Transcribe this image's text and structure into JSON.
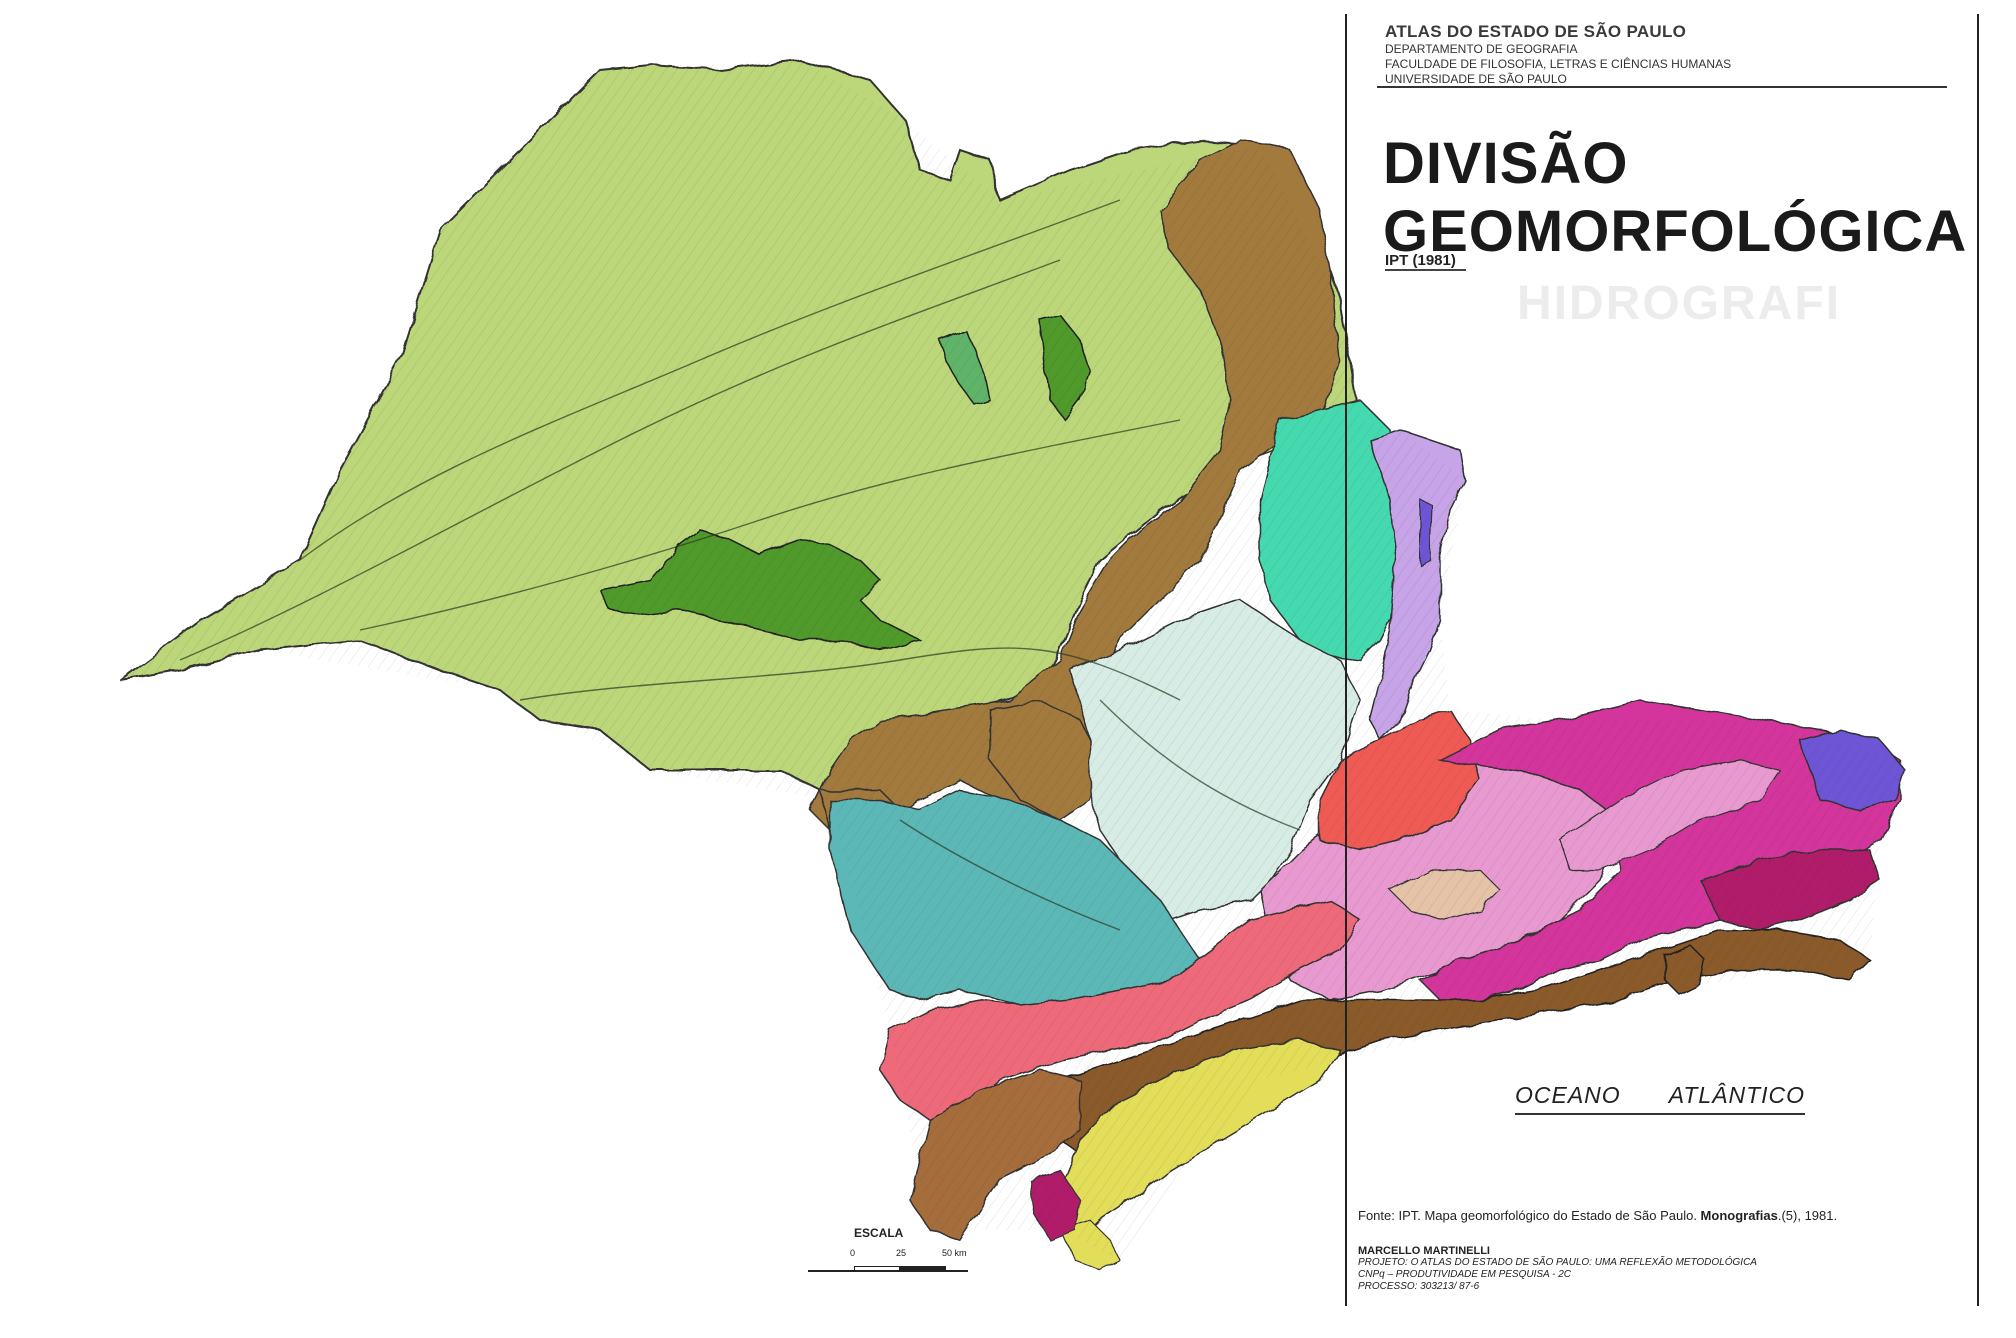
{
  "header": {
    "atlas_title": "ATLAS DO ESTADO DE SÃO PAULO",
    "department": "DEPARTAMENTO DE GEOGRAFIA",
    "faculty": "FACULDADE DE FILOSOFIA, LETRAS E CIÊNCIAS HUMANAS",
    "university": "UNIVERSIDADE DE SÃO PAULO"
  },
  "title": {
    "line1": "DIVISÃO",
    "line2": "GEOMORFOLÓGICA",
    "reference": "IPT (1981)",
    "ghost_text": "HIDROGRAFI"
  },
  "map": {
    "ocean_word1": "OCEANO",
    "ocean_word2": "ATLÂNTICO",
    "colors": {
      "planalto_ocidental": "#bcd67a",
      "cuestas_basalticas": "#a27a3c",
      "mesetas_basalticas": "#4f9a2a",
      "mesetas_light": "#5fb46a",
      "depressao_mogi_guacu": "#44d9b0",
      "depressao_medio_tiete": "#d8ece6",
      "depressao_paranapanema": "#5bb8b6",
      "planalto_atlantico_oeste": "#ee6a7a",
      "planalto_paulistano": "#f05a55",
      "planalto_mantiqueira": "#c7a3e8",
      "serra_mantiqueira": "#6e55d6",
      "planalto_paraitinga": "#d3349c",
      "vale_paraiba": "#e89ad0",
      "bocaina": "#b01f6a",
      "serra_do_mar": "#8b5a2b",
      "planicie_costeira": "#e3de5a",
      "litoral_sul": "#a56d3a",
      "morros_isolados": "#e5c3a8"
    }
  },
  "scale": {
    "label": "ESCALA",
    "t0": "0",
    "t1": "25",
    "t2": "50 km"
  },
  "source": {
    "prefix": "Fonte: IPT. Mapa geomorfológico do Estado de São Paulo. ",
    "bold": "Monografias",
    "suffix": ".(5), 1981."
  },
  "credits": {
    "author": "MARCELLO MARTINELLI",
    "project": "PROJETO: O ATLAS DO ESTADO DE SÃO PAULO: UMA REFLEXÃO METODOLÓGICA",
    "funding": "CNPq – PRODUTIVIDADE EM PESQUISA - 2C",
    "process": "PROCESSO: 303213/ 87-6"
  }
}
